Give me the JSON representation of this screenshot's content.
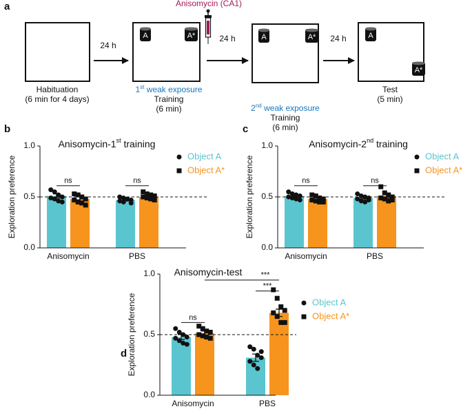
{
  "diagram": {
    "panel": "a",
    "drug": "Anisomycin (CA1)",
    "intervals": [
      "24 h",
      "24 h",
      "24 h"
    ],
    "stages": [
      {
        "caption": [
          "Habituation",
          "(6 min for 4 days)"
        ]
      },
      {
        "exposure": [
          "1",
          "st",
          " weak exposure"
        ],
        "caption": [
          "Training",
          "(6 min)"
        ],
        "objects": [
          "A",
          "A*"
        ]
      },
      {
        "exposure": [
          "2",
          "nd",
          " weak exposure"
        ],
        "caption": [
          "Training",
          "(6 min)"
        ],
        "objects": [
          "A",
          "A*"
        ]
      },
      {
        "caption": [
          "Test",
          "(5 min)"
        ],
        "objects": [
          "A",
          "A*"
        ]
      }
    ]
  },
  "chart_data": [
    {
      "type": "bar",
      "panel": "b",
      "title": [
        "Anisomycin-1",
        "st",
        " training"
      ],
      "y_label": "Exploration preference",
      "categories": [
        "Anisomycin",
        "PBS"
      ],
      "series": [
        {
          "name": "Object A",
          "color": "#5bc5cf",
          "marker": "circle",
          "values": [
            0.51,
            0.47
          ],
          "errors": [
            0.02,
            0.01
          ],
          "points": [
            [
              0.57,
              0.55,
              0.52,
              0.5,
              0.49,
              0.48,
              0.46,
              0.45
            ],
            [
              0.5,
              0.49,
              0.48,
              0.47,
              0.46,
              0.45,
              0.48,
              0.44
            ]
          ]
        },
        {
          "name": "Object A*",
          "color": "#f7941d",
          "marker": "square",
          "values": [
            0.48,
            0.5
          ],
          "errors": [
            0.02,
            0.01
          ],
          "points": [
            [
              0.53,
              0.52,
              0.5,
              0.48,
              0.47,
              0.45,
              0.44,
              0.42
            ],
            [
              0.55,
              0.53,
              0.52,
              0.51,
              0.5,
              0.49,
              0.48,
              0.47
            ]
          ]
        }
      ],
      "annotations": [
        "ns",
        "ns"
      ],
      "reference_line": 0.5,
      "ylim": [
        0,
        1
      ],
      "yticks": [
        {
          "value": 0,
          "label": "0.0"
        },
        {
          "value": 0.5,
          "label": "0.5"
        },
        {
          "value": 1,
          "label": "1.0"
        }
      ]
    },
    {
      "type": "bar",
      "panel": "c",
      "title": [
        "Anisomycin-2",
        "nd",
        " training"
      ],
      "y_label": "Exploration preference",
      "categories": [
        "Anisomycin",
        "PBS"
      ],
      "series": [
        {
          "name": "Object A",
          "color": "#5bc5cf",
          "marker": "circle",
          "values": [
            0.51,
            0.49
          ],
          "errors": [
            0.01,
            0.01
          ],
          "points": [
            [
              0.55,
              0.53,
              0.52,
              0.51,
              0.5,
              0.49,
              0.48,
              0.47
            ],
            [
              0.53,
              0.51,
              0.5,
              0.49,
              0.48,
              0.46,
              0.45,
              0.47
            ]
          ]
        },
        {
          "name": "Object A*",
          "color": "#f7941d",
          "marker": "square",
          "values": [
            0.48,
            0.51
          ],
          "errors": [
            0.01,
            0.02
          ],
          "points": [
            [
              0.52,
              0.51,
              0.49,
              0.48,
              0.47,
              0.46,
              0.45,
              0.45
            ],
            [
              0.6,
              0.54,
              0.52,
              0.5,
              0.49,
              0.48,
              0.46,
              0.47
            ]
          ]
        }
      ],
      "annotations": [
        "ns",
        "ns"
      ],
      "reference_line": 0.5,
      "ylim": [
        0,
        1
      ],
      "yticks": [
        {
          "value": 0,
          "label": "0.0"
        },
        {
          "value": 0.5,
          "label": "0.5"
        },
        {
          "value": 1,
          "label": "1.0"
        }
      ]
    },
    {
      "type": "bar",
      "panel": "d",
      "title": [
        "Anisomycin-test"
      ],
      "y_label": "Exploration preference",
      "categories": [
        "Anisomycin",
        "PBS"
      ],
      "series": [
        {
          "name": "Object A",
          "color": "#5bc5cf",
          "marker": "circle",
          "values": [
            0.48,
            0.31
          ],
          "errors": [
            0.02,
            0.03
          ],
          "points": [
            [
              0.55,
              0.52,
              0.5,
              0.48,
              0.47,
              0.45,
              0.43,
              0.42
            ],
            [
              0.4,
              0.38,
              0.33,
              0.31,
              0.28,
              0.25,
              0.22,
              0.36
            ]
          ]
        },
        {
          "name": "Object A*",
          "color": "#f7941d",
          "marker": "square",
          "values": [
            0.51,
            0.68
          ],
          "errors": [
            0.02,
            0.03
          ],
          "points": [
            [
              0.57,
              0.55,
              0.53,
              0.52,
              0.5,
              0.49,
              0.48,
              0.47
            ],
            [
              0.87,
              0.8,
              0.73,
              0.7,
              0.68,
              0.65,
              0.6,
              0.6
            ]
          ]
        }
      ],
      "annotations": [
        "ns",
        "***",
        "***"
      ],
      "reference_line": 0.5,
      "ylim": [
        0,
        1
      ],
      "yticks": [
        {
          "value": 0,
          "label": "0.0"
        },
        {
          "value": 0.5,
          "label": "0.5"
        },
        {
          "value": 1,
          "label": "1.0"
        }
      ]
    }
  ]
}
